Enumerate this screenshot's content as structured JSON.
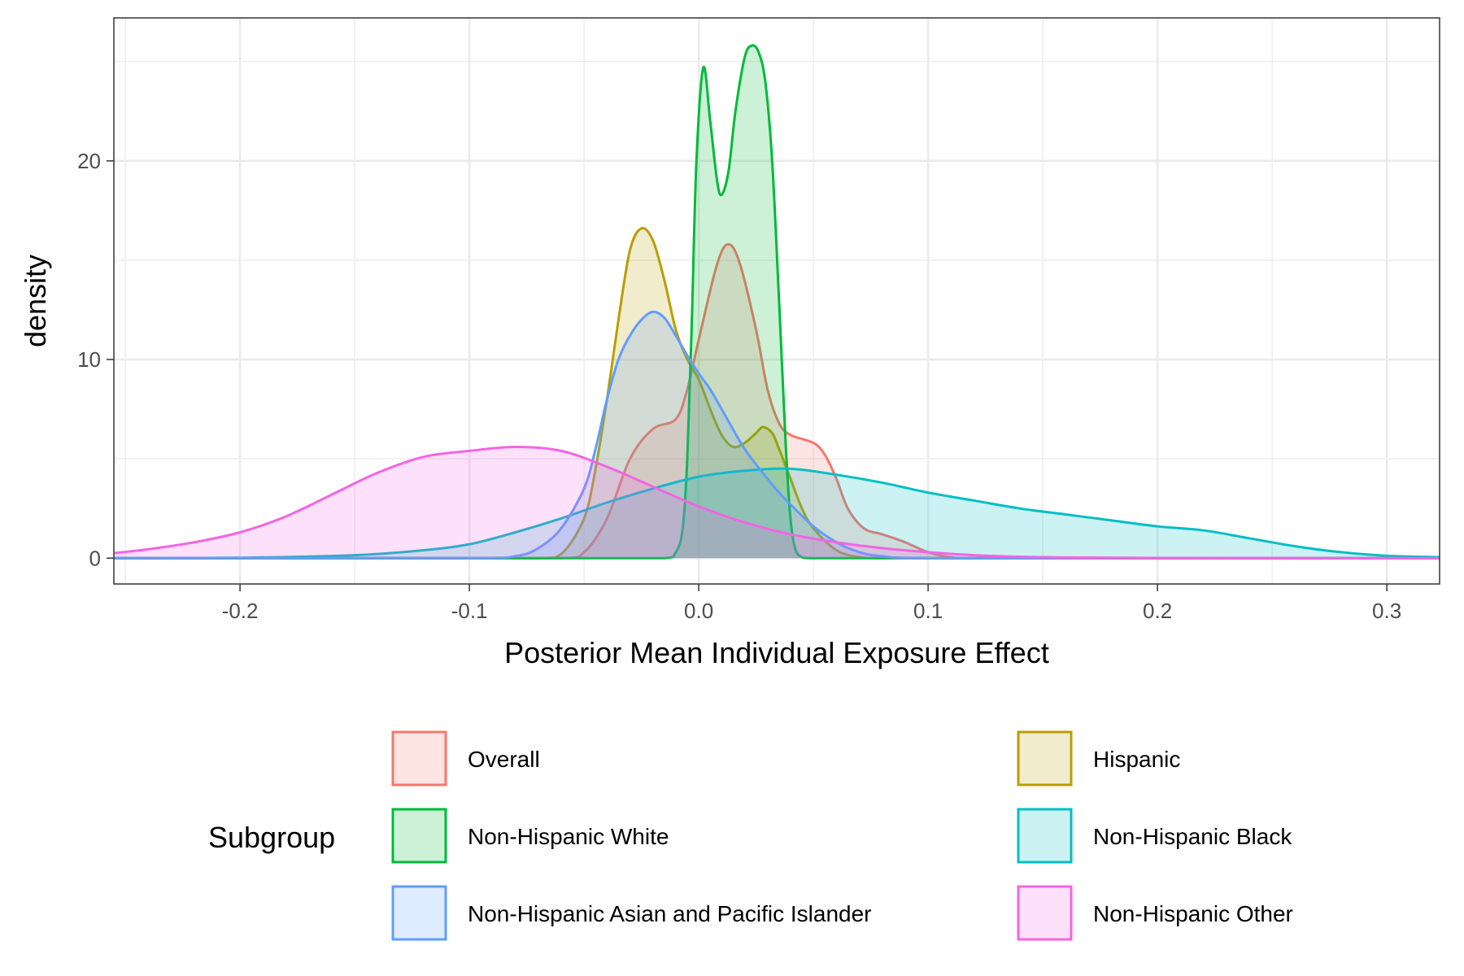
{
  "chart_data": {
    "type": "area",
    "title": "",
    "xlabel": "Posterior Mean Individual Exposure Effect",
    "ylabel": "density",
    "xlim": [
      -0.255,
      0.323
    ],
    "ylim": [
      -1.3,
      27.2
    ],
    "x_ticks": [
      -0.2,
      -0.1,
      0.0,
      0.1,
      0.2,
      0.3
    ],
    "x_tick_labels": [
      "-0.2",
      "-0.1",
      "0.0",
      "0.1",
      "0.2",
      "0.3"
    ],
    "y_ticks": [
      0,
      10,
      20
    ],
    "y_tick_labels": [
      "0",
      "10",
      "20"
    ],
    "grid": true,
    "legend": {
      "title": "Subgroup",
      "position": "bottom"
    },
    "fill_opacity": 0.2,
    "series": [
      {
        "name": "Overall",
        "color": "#F8766D",
        "points": [
          [
            -0.255,
            0
          ],
          [
            -0.06,
            0
          ],
          [
            -0.05,
            0.3
          ],
          [
            -0.04,
            2.0
          ],
          [
            -0.03,
            5.0
          ],
          [
            -0.02,
            6.5
          ],
          [
            -0.01,
            7.0
          ],
          [
            -0.005,
            8.5
          ],
          [
            0,
            11.0
          ],
          [
            0.008,
            14.8
          ],
          [
            0.013,
            15.8
          ],
          [
            0.018,
            14.8
          ],
          [
            0.025,
            11.5
          ],
          [
            0.03,
            8.5
          ],
          [
            0.035,
            6.8
          ],
          [
            0.04,
            6.2
          ],
          [
            0.05,
            5.8
          ],
          [
            0.055,
            5.2
          ],
          [
            0.06,
            4.0
          ],
          [
            0.065,
            2.5
          ],
          [
            0.072,
            1.5
          ],
          [
            0.08,
            1.2
          ],
          [
            0.09,
            0.8
          ],
          [
            0.1,
            0.3
          ],
          [
            0.11,
            0.05
          ],
          [
            0.12,
            0
          ],
          [
            0.323,
            0
          ]
        ]
      },
      {
        "name": "Hispanic",
        "color": "#B79F00",
        "points": [
          [
            -0.255,
            0
          ],
          [
            -0.07,
            0
          ],
          [
            -0.06,
            0.2
          ],
          [
            -0.05,
            2.0
          ],
          [
            -0.045,
            4.5
          ],
          [
            -0.04,
            8.0
          ],
          [
            -0.035,
            12.0
          ],
          [
            -0.03,
            15.5
          ],
          [
            -0.025,
            16.6
          ],
          [
            -0.02,
            16.0
          ],
          [
            -0.015,
            14.0
          ],
          [
            -0.01,
            11.5
          ],
          [
            -0.005,
            10.0
          ],
          [
            0.0,
            9.0
          ],
          [
            0.005,
            7.5
          ],
          [
            0.01,
            6.2
          ],
          [
            0.015,
            5.6
          ],
          [
            0.02,
            5.8
          ],
          [
            0.025,
            6.3
          ],
          [
            0.028,
            6.6
          ],
          [
            0.032,
            6.3
          ],
          [
            0.035,
            5.5
          ],
          [
            0.04,
            4.0
          ],
          [
            0.045,
            2.5
          ],
          [
            0.05,
            1.5
          ],
          [
            0.06,
            0.4
          ],
          [
            0.07,
            0.05
          ],
          [
            0.08,
            0
          ],
          [
            0.323,
            0
          ]
        ]
      },
      {
        "name": "Non-Hispanic White",
        "color": "#00BA38",
        "points": [
          [
            -0.255,
            0
          ],
          [
            -0.015,
            0
          ],
          [
            -0.01,
            0.3
          ],
          [
            -0.007,
            1.5
          ],
          [
            -0.005,
            5.0
          ],
          [
            -0.003,
            12.0
          ],
          [
            -0.001,
            20.0
          ],
          [
            0.002,
            24.7
          ],
          [
            0.005,
            22.0
          ],
          [
            0.008,
            19.0
          ],
          [
            0.01,
            18.3
          ],
          [
            0.013,
            19.5
          ],
          [
            0.016,
            22.5
          ],
          [
            0.02,
            25.2
          ],
          [
            0.023,
            25.8
          ],
          [
            0.026,
            25.5
          ],
          [
            0.029,
            24.0
          ],
          [
            0.032,
            20.0
          ],
          [
            0.035,
            13.0
          ],
          [
            0.038,
            5.5
          ],
          [
            0.04,
            2.0
          ],
          [
            0.042,
            0.5
          ],
          [
            0.045,
            0.05
          ],
          [
            0.05,
            0
          ],
          [
            0.323,
            0
          ]
        ]
      },
      {
        "name": "Non-Hispanic Black",
        "color": "#00BFC4",
        "points": [
          [
            -0.255,
            0
          ],
          [
            -0.2,
            0.02
          ],
          [
            -0.15,
            0.15
          ],
          [
            -0.12,
            0.4
          ],
          [
            -0.1,
            0.7
          ],
          [
            -0.08,
            1.3
          ],
          [
            -0.06,
            2.0
          ],
          [
            -0.04,
            2.8
          ],
          [
            -0.02,
            3.5
          ],
          [
            0.0,
            4.1
          ],
          [
            0.02,
            4.4
          ],
          [
            0.04,
            4.5
          ],
          [
            0.06,
            4.2
          ],
          [
            0.08,
            3.8
          ],
          [
            0.1,
            3.3
          ],
          [
            0.12,
            2.9
          ],
          [
            0.14,
            2.5
          ],
          [
            0.16,
            2.2
          ],
          [
            0.18,
            1.9
          ],
          [
            0.2,
            1.6
          ],
          [
            0.22,
            1.4
          ],
          [
            0.24,
            1.0
          ],
          [
            0.26,
            0.6
          ],
          [
            0.28,
            0.3
          ],
          [
            0.3,
            0.12
          ],
          [
            0.323,
            0.05
          ]
        ]
      },
      {
        "name": "Non-Hispanic Asian and Pacific Islander",
        "color": "#619CFF",
        "points": [
          [
            -0.255,
            0
          ],
          [
            -0.1,
            0
          ],
          [
            -0.08,
            0.1
          ],
          [
            -0.07,
            0.5
          ],
          [
            -0.06,
            1.5
          ],
          [
            -0.05,
            3.5
          ],
          [
            -0.045,
            5.5
          ],
          [
            -0.04,
            8.0
          ],
          [
            -0.035,
            10.0
          ],
          [
            -0.03,
            11.2
          ],
          [
            -0.025,
            12.0
          ],
          [
            -0.02,
            12.4
          ],
          [
            -0.015,
            12.1
          ],
          [
            -0.01,
            11.2
          ],
          [
            -0.005,
            10.2
          ],
          [
            0.0,
            9.3
          ],
          [
            0.005,
            8.5
          ],
          [
            0.01,
            7.5
          ],
          [
            0.02,
            5.5
          ],
          [
            0.03,
            4.0
          ],
          [
            0.035,
            3.3
          ],
          [
            0.04,
            2.7
          ],
          [
            0.05,
            1.6
          ],
          [
            0.06,
            0.8
          ],
          [
            0.07,
            0.3
          ],
          [
            0.08,
            0.1
          ],
          [
            0.1,
            0
          ],
          [
            0.323,
            0
          ]
        ]
      },
      {
        "name": "Non-Hispanic Other",
        "color": "#F564E3",
        "points": [
          [
            -0.255,
            0.25
          ],
          [
            -0.24,
            0.45
          ],
          [
            -0.22,
            0.8
          ],
          [
            -0.2,
            1.3
          ],
          [
            -0.18,
            2.1
          ],
          [
            -0.16,
            3.2
          ],
          [
            -0.14,
            4.3
          ],
          [
            -0.12,
            5.1
          ],
          [
            -0.1,
            5.4
          ],
          [
            -0.08,
            5.6
          ],
          [
            -0.06,
            5.4
          ],
          [
            -0.04,
            4.6
          ],
          [
            -0.02,
            3.6
          ],
          [
            0.0,
            2.6
          ],
          [
            0.02,
            1.8
          ],
          [
            0.04,
            1.2
          ],
          [
            0.06,
            0.8
          ],
          [
            0.08,
            0.5
          ],
          [
            0.1,
            0.3
          ],
          [
            0.12,
            0.15
          ],
          [
            0.15,
            0.05
          ],
          [
            0.2,
            0.01
          ],
          [
            0.323,
            0.0
          ]
        ]
      }
    ]
  }
}
